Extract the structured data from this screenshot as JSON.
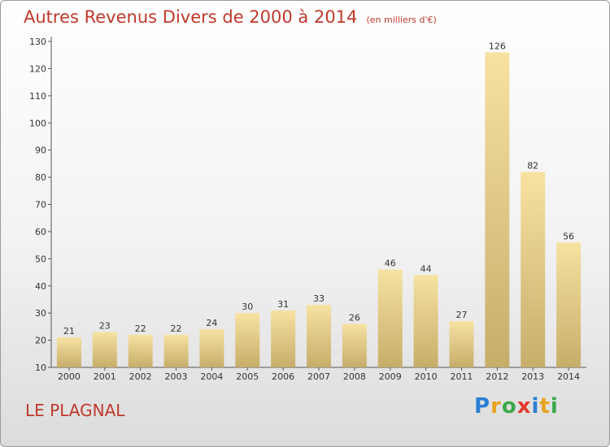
{
  "title": "Autres Revenus Divers de 2000 à 2014",
  "subtitle": "(en milliers d'€)",
  "place": "LE PLAGNAL",
  "logo": {
    "letters": [
      "P",
      "r",
      "o",
      "x",
      "i",
      "t",
      "i"
    ],
    "colors": [
      "#2a7fd4",
      "#e8a21c",
      "#3aa847",
      "#e23b2e",
      "#2a7fd4",
      "#e8a21c",
      "#3aa847"
    ]
  },
  "colors": {
    "title": "#c0392b",
    "bar_light": "#f7e2a2",
    "bar_dark": "#c7ad6a",
    "axis": "#555555"
  },
  "chart_data": {
    "type": "bar",
    "title": "Autres Revenus Divers de 2000 à 2014",
    "ylabel": "en milliers d'€",
    "categories": [
      "2000",
      "2001",
      "2002",
      "2003",
      "2004",
      "2005",
      "2006",
      "2007",
      "2008",
      "2009",
      "2010",
      "2011",
      "2012",
      "2013",
      "2014"
    ],
    "values": [
      21,
      23,
      22,
      22,
      24,
      30,
      31,
      33,
      26,
      46,
      44,
      27,
      126,
      82,
      56
    ],
    "ylim": [
      10,
      130
    ],
    "yticks": [
      10,
      20,
      30,
      40,
      50,
      60,
      70,
      80,
      90,
      100,
      110,
      120,
      130
    ],
    "grid": false
  }
}
